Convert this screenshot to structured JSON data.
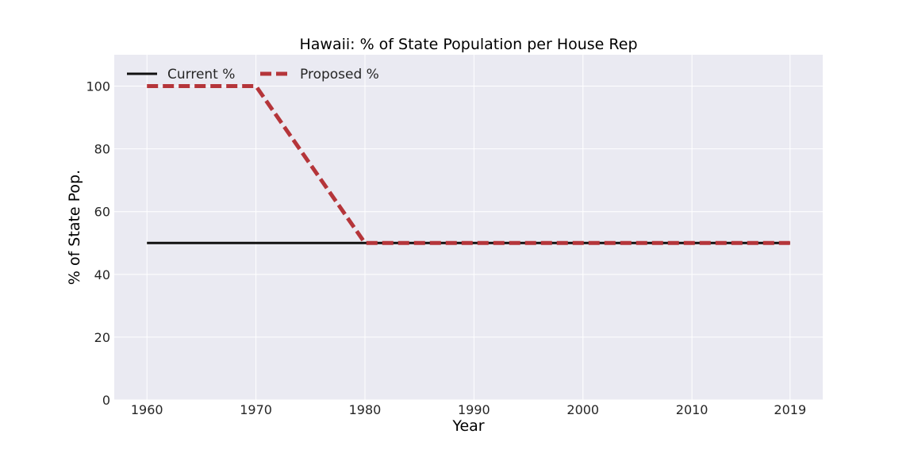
{
  "chart_data": {
    "type": "line",
    "title": "Hawaii: % of State Population per House Rep",
    "xlabel": "Year",
    "ylabel": "% of State Pop.",
    "x": [
      1960,
      1970,
      1980,
      1990,
      2000,
      2010,
      2019
    ],
    "x_tick_labels": [
      "1960",
      "1970",
      "1980",
      "1990",
      "2000",
      "2010",
      "2019"
    ],
    "y_ticks": [
      0,
      20,
      40,
      60,
      80,
      100
    ],
    "y_tick_labels": [
      "0",
      "20",
      "40",
      "60",
      "80",
      "100"
    ],
    "xlim": [
      1957,
      2022
    ],
    "ylim": [
      0,
      110
    ],
    "grid": true,
    "legend_position": "top-left",
    "series": [
      {
        "name": "Current %",
        "values": [
          50,
          50,
          50,
          50,
          50,
          50,
          50
        ],
        "color": "#111111",
        "style": "solid"
      },
      {
        "name": "Proposed %",
        "values": [
          100,
          100,
          50,
          50,
          50,
          50,
          50
        ],
        "color": "#b5353a",
        "style": "dashed"
      }
    ],
    "colors": {
      "plot_background": "#eaeaf2",
      "grid": "#ffffff"
    }
  }
}
